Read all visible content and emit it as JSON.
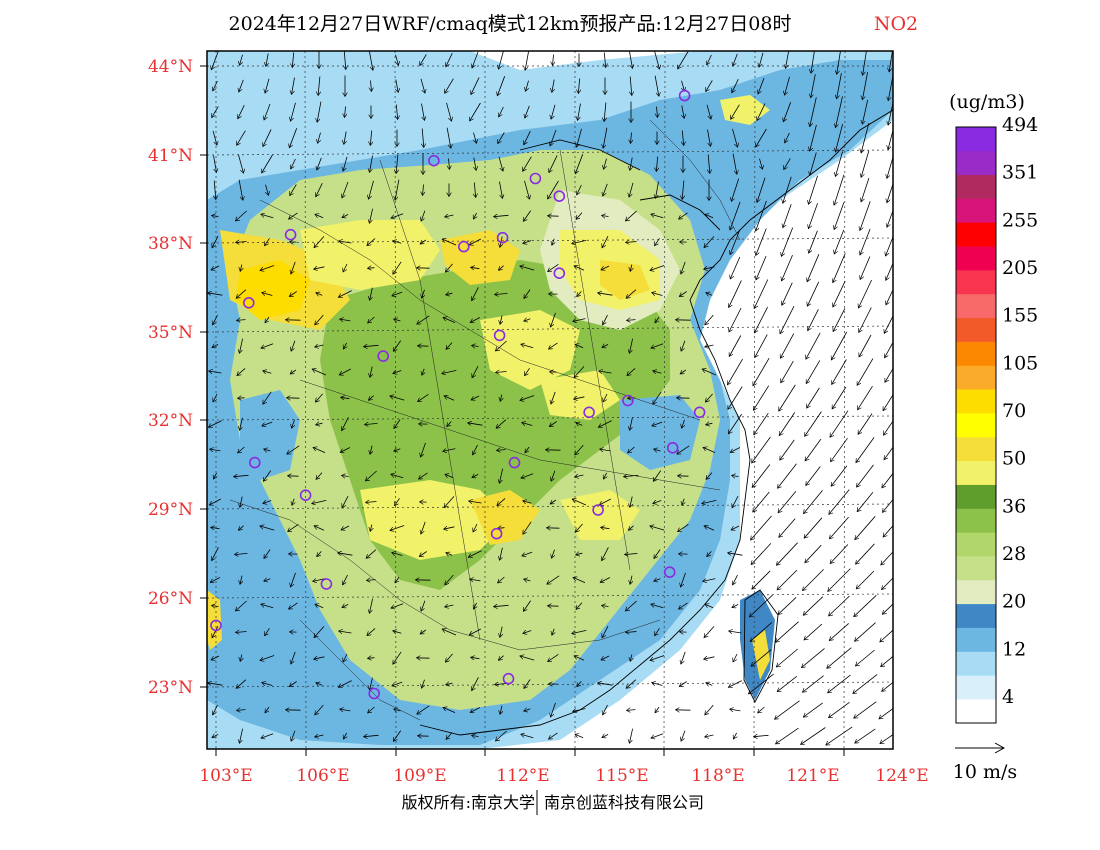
{
  "header": {
    "title": "2024年12月27日WRF/cmaq模式12km预报产品:12月27日08时",
    "species": "NO2"
  },
  "axes": {
    "lat_labels": [
      "44°N",
      "41°N",
      "38°N",
      "35°N",
      "32°N",
      "29°N",
      "26°N",
      "23°N"
    ],
    "lon_labels": [
      "103°E",
      "106°E",
      "109°E",
      "112°E",
      "115°E",
      "118°E",
      "121°E",
      "124°E"
    ]
  },
  "colorbar": {
    "unit": "(ug/m3)",
    "levels": [
      {
        "color": "#ffffff",
        "label": "4"
      },
      {
        "color": "#d9f0fb",
        "label": ""
      },
      {
        "color": "#a8dcf4",
        "label": "12"
      },
      {
        "color": "#6cb6e2",
        "label": ""
      },
      {
        "color": "#3f88c5",
        "label": "20"
      },
      {
        "color": "#e2ecc0",
        "label": ""
      },
      {
        "color": "#c6e08a",
        "label": "28"
      },
      {
        "color": "#b1d66a",
        "label": ""
      },
      {
        "color": "#8cc24a",
        "label": "36"
      },
      {
        "color": "#5f9e2c",
        "label": ""
      },
      {
        "color": "#f2f26a",
        "label": "50"
      },
      {
        "color": "#f5dd3a",
        "label": ""
      },
      {
        "color": "#ffff00",
        "label": "70"
      },
      {
        "color": "#fddc00",
        "label": ""
      },
      {
        "color": "#fbab2a",
        "label": "105"
      },
      {
        "color": "#fb8800",
        "label": ""
      },
      {
        "color": "#f25a2a",
        "label": "155"
      },
      {
        "color": "#f86a6a",
        "label": ""
      },
      {
        "color": "#f8344e",
        "label": "205"
      },
      {
        "color": "#f00050",
        "label": ""
      },
      {
        "color": "#ff0000",
        "label": "255"
      },
      {
        "color": "#d8147a",
        "label": ""
      },
      {
        "color": "#b02a60",
        "label": "351"
      },
      {
        "color": "#9a2bc8",
        "label": ""
      },
      {
        "color": "#8a2be2",
        "label": "494"
      }
    ]
  },
  "wind_reference": {
    "label": "10 m/s"
  },
  "footer": {
    "left": "版权所有:南京大学",
    "right": "南京创蓝科技有限公司"
  },
  "map_data": {
    "region": "East China NO2 forecast with wind vectors",
    "lat_range": [
      21,
      44.5
    ],
    "lon_range": [
      102.8,
      124
    ],
    "city_markers": [
      [
        118.7,
        43.0
      ],
      [
        110.3,
        40.8
      ],
      [
        113.7,
        40.2
      ],
      [
        114.5,
        39.6
      ],
      [
        105.5,
        38.3
      ],
      [
        111.3,
        37.9
      ],
      [
        112.6,
        38.2
      ],
      [
        114.5,
        37.0
      ],
      [
        104.1,
        36.0
      ],
      [
        108.6,
        34.2
      ],
      [
        112.5,
        34.9
      ],
      [
        115.5,
        32.3
      ],
      [
        116.8,
        32.7
      ],
      [
        119.2,
        32.3
      ],
      [
        118.3,
        31.1
      ],
      [
        104.3,
        30.6
      ],
      [
        106.0,
        29.5
      ],
      [
        113.0,
        30.6
      ],
      [
        115.8,
        29.0
      ],
      [
        112.4,
        28.2
      ],
      [
        118.2,
        26.9
      ],
      [
        106.7,
        26.5
      ],
      [
        103.0,
        25.1
      ],
      [
        112.8,
        23.3
      ],
      [
        108.3,
        22.8
      ]
    ]
  }
}
